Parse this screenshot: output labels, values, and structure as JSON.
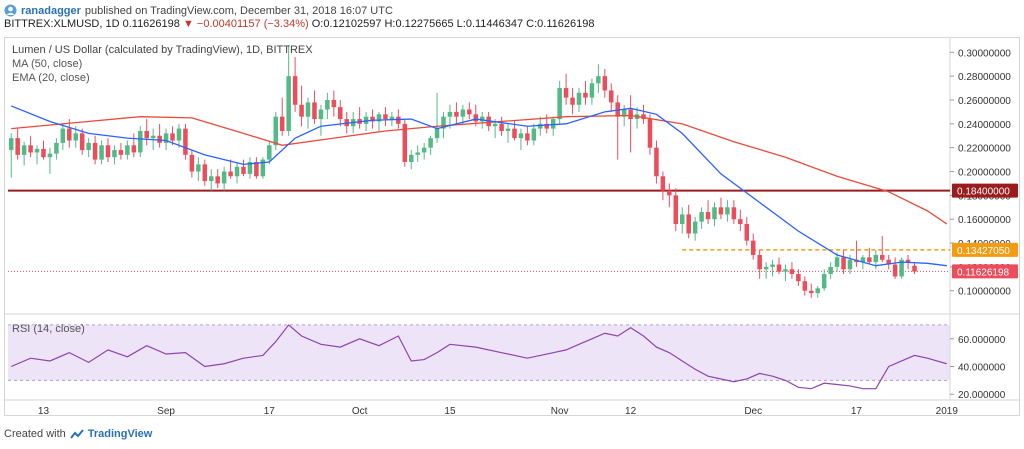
{
  "header": {
    "user": "ranadagger",
    "published_text": "published on TradingView.com, December 31, 2018 16:07 UTC",
    "symbol": "BITTREX:XLMUSD, 1D",
    "last": "0.11626198",
    "arrow": "▼",
    "change": "−0.00401157 (−3.34%)",
    "ohlc": "O:0.12102597 H:0.12275665 L:0.11446347 C:0.11626198"
  },
  "legend": {
    "title": "Lumen / US Dollar (calculated by TradingView), 1D, BITTREX",
    "ma": "MA (50, close)",
    "ema": "EMA (20, close)",
    "rsi": "RSI (14, close)"
  },
  "footer": {
    "created_with": "Created with",
    "brand": "TradingView"
  },
  "colors": {
    "up": "#53b987",
    "down": "#eb4d5c",
    "ma": "#e74c3c",
    "ema": "#2962ff",
    "rsi": "#8e44ad",
    "rsi_band": "#ede4f7",
    "resistance": "#9b1c1c",
    "dashed": "#f39c12"
  },
  "chart_data": [
    {
      "type": "candlestick",
      "title": "Lumen / US Dollar (calculated by TradingView), 1D, BITTREX",
      "ylim": [
        0.083,
        0.312
      ],
      "y_ticks": [
        0.1,
        0.12,
        0.14,
        0.16,
        0.18,
        0.2,
        0.22,
        0.24,
        0.26,
        0.28,
        0.3
      ],
      "y_tick_labels": [
        "0.10000000",
        "0.12000000",
        "0.14000000",
        "0.16000000",
        "0.18000000",
        "0.20000000",
        "0.22000000",
        "0.24000000",
        "0.26000000",
        "0.28000000",
        "0.30000000"
      ],
      "x_ticks": [
        {
          "label": "13",
          "index": 5
        },
        {
          "label": "Sep",
          "index": 24
        },
        {
          "label": "17",
          "index": 40
        },
        {
          "label": "Oct",
          "index": 54
        },
        {
          "label": "15",
          "index": 68
        },
        {
          "label": "Nov",
          "index": 85
        },
        {
          "label": "12",
          "index": 96
        },
        {
          "label": "Dec",
          "index": 115
        },
        {
          "label": "17",
          "index": 131
        },
        {
          "label": "2019",
          "index": 145
        }
      ],
      "n_bars": 146,
      "candles": [
        [
          0.218,
          0.232,
          0.195,
          0.228
        ],
        [
          0.228,
          0.236,
          0.21,
          0.214
        ],
        [
          0.214,
          0.225,
          0.205,
          0.222
        ],
        [
          0.222,
          0.23,
          0.212,
          0.216
        ],
        [
          0.216,
          0.222,
          0.206,
          0.219
        ],
        [
          0.219,
          0.226,
          0.21,
          0.212
        ],
        [
          0.212,
          0.22,
          0.198,
          0.215
        ],
        [
          0.215,
          0.228,
          0.21,
          0.224
        ],
        [
          0.224,
          0.24,
          0.218,
          0.236
        ],
        [
          0.236,
          0.244,
          0.22,
          0.226
        ],
        [
          0.226,
          0.238,
          0.22,
          0.232
        ],
        [
          0.232,
          0.236,
          0.214,
          0.218
        ],
        [
          0.218,
          0.228,
          0.212,
          0.224
        ],
        [
          0.224,
          0.23,
          0.206,
          0.21
        ],
        [
          0.21,
          0.226,
          0.206,
          0.222
        ],
        [
          0.222,
          0.228,
          0.208,
          0.212
        ],
        [
          0.212,
          0.222,
          0.206,
          0.218
        ],
        [
          0.218,
          0.224,
          0.21,
          0.214
        ],
        [
          0.214,
          0.226,
          0.21,
          0.222
        ],
        [
          0.222,
          0.232,
          0.212,
          0.216
        ],
        [
          0.216,
          0.238,
          0.212,
          0.234
        ],
        [
          0.234,
          0.244,
          0.222,
          0.228
        ],
        [
          0.228,
          0.236,
          0.218,
          0.23
        ],
        [
          0.23,
          0.24,
          0.22,
          0.224
        ],
        [
          0.224,
          0.236,
          0.218,
          0.232
        ],
        [
          0.232,
          0.238,
          0.222,
          0.226
        ],
        [
          0.226,
          0.24,
          0.22,
          0.236
        ],
        [
          0.236,
          0.24,
          0.21,
          0.214
        ],
        [
          0.214,
          0.218,
          0.195,
          0.2
        ],
        [
          0.2,
          0.212,
          0.192,
          0.206
        ],
        [
          0.206,
          0.21,
          0.188,
          0.192
        ],
        [
          0.192,
          0.202,
          0.184,
          0.196
        ],
        [
          0.196,
          0.202,
          0.186,
          0.19
        ],
        [
          0.19,
          0.204,
          0.184,
          0.2
        ],
        [
          0.2,
          0.21,
          0.194,
          0.196
        ],
        [
          0.196,
          0.208,
          0.19,
          0.204
        ],
        [
          0.204,
          0.21,
          0.196,
          0.198
        ],
        [
          0.198,
          0.212,
          0.194,
          0.208
        ],
        [
          0.208,
          0.212,
          0.194,
          0.196
        ],
        [
          0.196,
          0.212,
          0.194,
          0.21
        ],
        [
          0.21,
          0.226,
          0.206,
          0.222
        ],
        [
          0.222,
          0.25,
          0.218,
          0.246
        ],
        [
          0.246,
          0.262,
          0.23,
          0.234
        ],
        [
          0.234,
          0.306,
          0.23,
          0.28
        ],
        [
          0.28,
          0.296,
          0.25,
          0.256
        ],
        [
          0.256,
          0.272,
          0.238,
          0.246
        ],
        [
          0.246,
          0.262,
          0.236,
          0.258
        ],
        [
          0.258,
          0.268,
          0.24,
          0.244
        ],
        [
          0.244,
          0.256,
          0.23,
          0.252
        ],
        [
          0.252,
          0.266,
          0.244,
          0.26
        ],
        [
          0.26,
          0.268,
          0.246,
          0.254
        ],
        [
          0.254,
          0.26,
          0.238,
          0.244
        ],
        [
          0.244,
          0.25,
          0.232,
          0.238
        ],
        [
          0.238,
          0.25,
          0.232,
          0.244
        ],
        [
          0.244,
          0.254,
          0.236,
          0.24
        ],
        [
          0.24,
          0.25,
          0.234,
          0.246
        ],
        [
          0.246,
          0.252,
          0.236,
          0.242
        ],
        [
          0.242,
          0.25,
          0.234,
          0.248
        ],
        [
          0.248,
          0.254,
          0.238,
          0.244
        ],
        [
          0.244,
          0.25,
          0.238,
          0.246
        ],
        [
          0.246,
          0.252,
          0.236,
          0.24
        ],
        [
          0.24,
          0.244,
          0.204,
          0.208
        ],
        [
          0.208,
          0.218,
          0.202,
          0.214
        ],
        [
          0.214,
          0.222,
          0.208,
          0.216
        ],
        [
          0.216,
          0.224,
          0.21,
          0.22
        ],
        [
          0.22,
          0.23,
          0.214,
          0.228
        ],
        [
          0.228,
          0.266,
          0.224,
          0.236
        ],
        [
          0.236,
          0.25,
          0.228,
          0.246
        ],
        [
          0.246,
          0.256,
          0.236,
          0.25
        ],
        [
          0.25,
          0.258,
          0.24,
          0.246
        ],
        [
          0.246,
          0.256,
          0.24,
          0.252
        ],
        [
          0.252,
          0.258,
          0.244,
          0.248
        ],
        [
          0.248,
          0.256,
          0.238,
          0.242
        ],
        [
          0.242,
          0.25,
          0.236,
          0.246
        ],
        [
          0.246,
          0.25,
          0.234,
          0.238
        ],
        [
          0.238,
          0.244,
          0.228,
          0.24
        ],
        [
          0.24,
          0.246,
          0.23,
          0.234
        ],
        [
          0.234,
          0.24,
          0.224,
          0.236
        ],
        [
          0.236,
          0.242,
          0.226,
          0.228
        ],
        [
          0.228,
          0.236,
          0.218,
          0.232
        ],
        [
          0.232,
          0.238,
          0.222,
          0.226
        ],
        [
          0.226,
          0.24,
          0.222,
          0.236
        ],
        [
          0.236,
          0.246,
          0.23,
          0.24
        ],
        [
          0.24,
          0.248,
          0.232,
          0.236
        ],
        [
          0.236,
          0.246,
          0.23,
          0.244
        ],
        [
          0.244,
          0.276,
          0.24,
          0.27
        ],
        [
          0.27,
          0.282,
          0.256,
          0.262
        ],
        [
          0.262,
          0.27,
          0.248,
          0.256
        ],
        [
          0.256,
          0.27,
          0.25,
          0.266
        ],
        [
          0.266,
          0.276,
          0.256,
          0.262
        ],
        [
          0.262,
          0.278,
          0.256,
          0.274
        ],
        [
          0.274,
          0.29,
          0.266,
          0.28
        ],
        [
          0.28,
          0.286,
          0.262,
          0.268
        ],
        [
          0.268,
          0.274,
          0.25,
          0.258
        ],
        [
          0.258,
          0.264,
          0.21,
          0.246
        ],
        [
          0.246,
          0.256,
          0.238,
          0.252
        ],
        [
          0.252,
          0.264,
          0.216,
          0.244
        ],
        [
          0.244,
          0.254,
          0.236,
          0.248
        ],
        [
          0.248,
          0.256,
          0.24,
          0.244
        ],
        [
          0.244,
          0.248,
          0.214,
          0.22
        ],
        [
          0.22,
          0.226,
          0.19,
          0.196
        ],
        [
          0.196,
          0.2,
          0.176,
          0.184
        ],
        [
          0.184,
          0.19,
          0.17,
          0.18
        ],
        [
          0.18,
          0.186,
          0.15,
          0.156
        ],
        [
          0.156,
          0.17,
          0.148,
          0.164
        ],
        [
          0.164,
          0.172,
          0.144,
          0.148
        ],
        [
          0.148,
          0.162,
          0.142,
          0.158
        ],
        [
          0.158,
          0.17,
          0.152,
          0.166
        ],
        [
          0.166,
          0.176,
          0.156,
          0.16
        ],
        [
          0.16,
          0.174,
          0.154,
          0.17
        ],
        [
          0.17,
          0.178,
          0.16,
          0.164
        ],
        [
          0.164,
          0.176,
          0.158,
          0.17
        ],
        [
          0.17,
          0.176,
          0.156,
          0.16
        ],
        [
          0.16,
          0.168,
          0.15,
          0.156
        ],
        [
          0.156,
          0.162,
          0.138,
          0.142
        ],
        [
          0.142,
          0.148,
          0.126,
          0.13
        ],
        [
          0.13,
          0.134,
          0.11,
          0.118
        ],
        [
          0.118,
          0.124,
          0.11,
          0.12
        ],
        [
          0.12,
          0.126,
          0.112,
          0.122
        ],
        [
          0.122,
          0.128,
          0.114,
          0.116
        ],
        [
          0.116,
          0.122,
          0.108,
          0.118
        ],
        [
          0.118,
          0.124,
          0.11,
          0.114
        ],
        [
          0.114,
          0.118,
          0.104,
          0.108
        ],
        [
          0.108,
          0.112,
          0.096,
          0.1
        ],
        [
          0.1,
          0.106,
          0.094,
          0.098
        ],
        [
          0.098,
          0.104,
          0.094,
          0.102
        ],
        [
          0.102,
          0.118,
          0.1,
          0.114
        ],
        [
          0.114,
          0.124,
          0.11,
          0.12
        ],
        [
          0.12,
          0.132,
          0.116,
          0.128
        ],
        [
          0.128,
          0.134,
          0.114,
          0.118
        ],
        [
          0.118,
          0.13,
          0.114,
          0.126
        ],
        [
          0.126,
          0.142,
          0.12,
          0.124
        ],
        [
          0.124,
          0.13,
          0.118,
          0.128
        ],
        [
          0.128,
          0.136,
          0.122,
          0.124
        ],
        [
          0.124,
          0.134,
          0.118,
          0.13
        ],
        [
          0.13,
          0.146,
          0.124,
          0.126
        ],
        [
          0.126,
          0.13,
          0.118,
          0.122
        ],
        [
          0.122,
          0.128,
          0.11,
          0.112
        ],
        [
          0.112,
          0.128,
          0.11,
          0.126
        ],
        [
          0.126,
          0.13,
          0.118,
          0.124
        ],
        [
          0.121,
          0.123,
          0.114,
          0.116
        ]
      ],
      "ma_50": [
        [
          0,
          0.236
        ],
        [
          10,
          0.241
        ],
        [
          20,
          0.246
        ],
        [
          28,
          0.245
        ],
        [
          36,
          0.232
        ],
        [
          42,
          0.222
        ],
        [
          50,
          0.228
        ],
        [
          58,
          0.234
        ],
        [
          66,
          0.238
        ],
        [
          76,
          0.242
        ],
        [
          86,
          0.246
        ],
        [
          96,
          0.247
        ],
        [
          104,
          0.24
        ],
        [
          112,
          0.225
        ],
        [
          120,
          0.212
        ],
        [
          128,
          0.196
        ],
        [
          136,
          0.183
        ],
        [
          142,
          0.167
        ],
        [
          145,
          0.156
        ]
      ],
      "ema_20": [
        [
          0,
          0.255
        ],
        [
          6,
          0.242
        ],
        [
          12,
          0.232
        ],
        [
          18,
          0.228
        ],
        [
          24,
          0.226
        ],
        [
          30,
          0.214
        ],
        [
          36,
          0.206
        ],
        [
          40,
          0.208
        ],
        [
          44,
          0.228
        ],
        [
          48,
          0.238
        ],
        [
          56,
          0.243
        ],
        [
          62,
          0.244
        ],
        [
          66,
          0.236
        ],
        [
          72,
          0.244
        ],
        [
          80,
          0.238
        ],
        [
          86,
          0.24
        ],
        [
          92,
          0.25
        ],
        [
          96,
          0.253
        ],
        [
          100,
          0.248
        ],
        [
          104,
          0.232
        ],
        [
          110,
          0.198
        ],
        [
          116,
          0.174
        ],
        [
          122,
          0.15
        ],
        [
          128,
          0.13
        ],
        [
          134,
          0.121
        ],
        [
          138,
          0.124
        ],
        [
          142,
          0.123
        ],
        [
          145,
          0.121
        ]
      ],
      "horizontal_lines": [
        {
          "value": 0.184,
          "label": "0.18400000",
          "style": "solid"
        },
        {
          "value": 0.1342705,
          "label": "0.13427050",
          "style": "dashed"
        },
        {
          "value": 0.11626198,
          "label": "0.11626198",
          "style": "dotted"
        }
      ]
    },
    {
      "type": "line",
      "title": "RSI (14, close)",
      "ylim": [
        18,
        75
      ],
      "y_ticks": [
        20,
        40,
        60
      ],
      "y_tick_labels": [
        "20.000000",
        "40.000000",
        "60.000000"
      ],
      "band": [
        30,
        70
      ],
      "x": [
        0,
        3,
        6,
        9,
        12,
        15,
        18,
        21,
        24,
        27,
        30,
        33,
        36,
        39,
        41,
        43,
        45,
        48,
        51,
        54,
        57,
        60,
        62,
        64,
        66,
        68,
        72,
        76,
        80,
        84,
        86,
        88,
        90,
        92,
        94,
        96,
        98,
        100,
        102,
        104,
        106,
        108,
        110,
        112,
        114,
        116,
        118,
        120,
        122,
        124,
        126,
        128,
        130,
        132,
        134,
        136,
        138,
        140,
        142,
        145
      ],
      "values": [
        40,
        46,
        44,
        50,
        43,
        52,
        47,
        55,
        49,
        50,
        40,
        42,
        46,
        48,
        58,
        70,
        62,
        56,
        54,
        60,
        55,
        62,
        44,
        45,
        50,
        56,
        54,
        50,
        46,
        50,
        52,
        56,
        60,
        64,
        62,
        68,
        62,
        54,
        50,
        44,
        38,
        33,
        31,
        29,
        31,
        35,
        33,
        30,
        25,
        24,
        28,
        27,
        26,
        24,
        24,
        40,
        44,
        48,
        46,
        42
      ]
    }
  ]
}
